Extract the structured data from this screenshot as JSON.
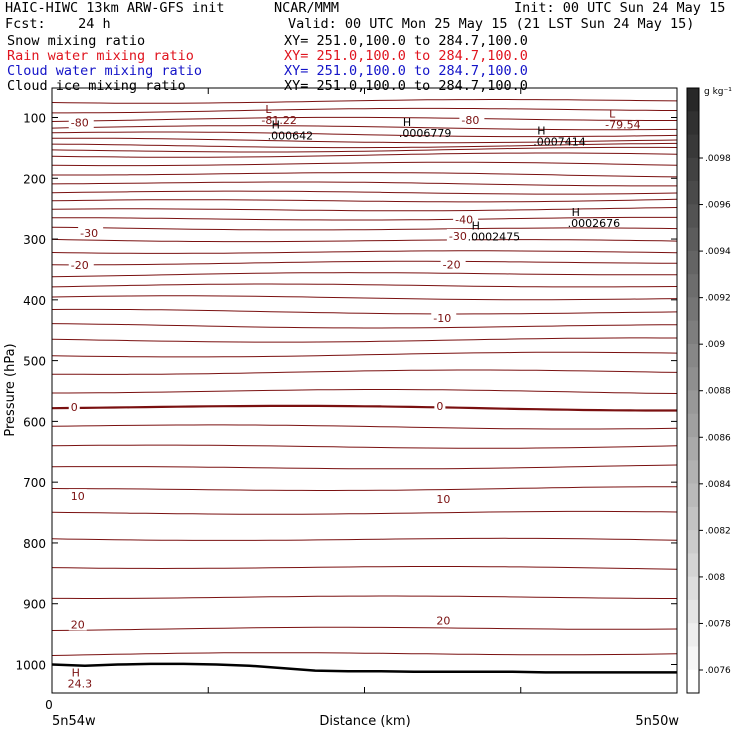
{
  "header": {
    "line1_left": "HAIC-HIWC 13km ARW-GFS init",
    "line1_mid": "NCAR/MMM",
    "line1_right": "Init: 00 UTC Sun 24 May 15",
    "line2_left": "Fcst:    24 h",
    "line2_right": "Valid: 00 UTC Mon 25 May 15 (21 LST Sun 24 May 15)",
    "fields": [
      {
        "label": "Snow mixing ratio",
        "xy": "XY= 251.0,100.0 to 284.7,100.0",
        "color": "#000000"
      },
      {
        "label": "Rain water mixing ratio",
        "xy": "XY= 251.0,100.0 to 284.7,100.0",
        "color": "#e0141e"
      },
      {
        "label": "Cloud water mixing ratio",
        "xy": "XY= 251.0,100.0 to 284.7,100.0",
        "color": "#1414c8"
      },
      {
        "label": "Cloud ice mixing ratio",
        "xy": "XY= 251.0,100.0 to 284.7,100.0",
        "color": "#000000"
      }
    ]
  },
  "chart_data": {
    "type": "line",
    "ylabel": "Pressure (hPa)",
    "xlabel": "Distance (km)",
    "x_start_label": "0",
    "x_left_label": "5n54w",
    "x_right_label": "5n50w",
    "ytick_labels": [
      "100",
      "200",
      "300",
      "400",
      "500",
      "600",
      "700",
      "800",
      "900",
      "1000"
    ],
    "yticks": [
      100,
      200,
      300,
      400,
      500,
      600,
      700,
      800,
      900,
      1000
    ],
    "ylim": [
      1050,
      35
    ],
    "xlim": [
      0,
      1
    ],
    "contour_color": "#7a1010",
    "isotherm_pressures": [
      45,
      72,
      88,
      104,
      118,
      128,
      137,
      145,
      153,
      163,
      178,
      194,
      208,
      222,
      236,
      252,
      268,
      284,
      302,
      320,
      338,
      358,
      378,
      398,
      420,
      442,
      465,
      490,
      520,
      552,
      578,
      608,
      640,
      675,
      712,
      752,
      795,
      840,
      888,
      940,
      983
    ],
    "contour_labels": [
      {
        "text": "-80",
        "x": 0.03,
        "p": 108
      },
      {
        "text": "-80",
        "x": 0.655,
        "p": 104
      },
      {
        "text": "-40",
        "x": 0.645,
        "p": 268
      },
      {
        "text": "-30",
        "x": 0.045,
        "p": 290
      },
      {
        "text": "-30",
        "x": 0.635,
        "p": 295
      },
      {
        "text": "-20",
        "x": 0.03,
        "p": 343
      },
      {
        "text": "-20",
        "x": 0.625,
        "p": 342
      },
      {
        "text": "-10",
        "x": 0.61,
        "p": 430
      },
      {
        "text": "0",
        "x": 0.03,
        "p": 576
      },
      {
        "text": "0",
        "x": 0.615,
        "p": 575
      },
      {
        "text": "10",
        "x": 0.03,
        "p": 723
      },
      {
        "text": "10",
        "x": 0.615,
        "p": 728
      },
      {
        "text": "20",
        "x": 0.03,
        "p": 934
      },
      {
        "text": "20",
        "x": 0.615,
        "p": 928
      }
    ],
    "extrema": [
      {
        "kind": "L",
        "value": "-81.22",
        "x": 0.335,
        "p": 93,
        "color": "#7a1010"
      },
      {
        "kind": "L",
        "value": "-79.54",
        "x": 0.885,
        "p": 100,
        "color": "#7a1010"
      },
      {
        "kind": "H",
        "value": ".000642",
        "x": 0.345,
        "p": 118,
        "color": "#000000"
      },
      {
        "kind": "H",
        "value": ".0006779",
        "x": 0.555,
        "p": 114,
        "color": "#000000"
      },
      {
        "kind": "H",
        "value": ".0007414",
        "x": 0.77,
        "p": 128,
        "color": "#000000"
      },
      {
        "kind": "H",
        "value": ".0002475",
        "x": 0.665,
        "p": 284,
        "color": "#000000"
      },
      {
        "kind": "H",
        "value": ".0002676",
        "x": 0.825,
        "p": 262,
        "color": "#000000"
      },
      {
        "kind": "H",
        "value": "24.3",
        "x": 0.025,
        "p": 1020,
        "color": "#7a1010"
      }
    ],
    "terrain_pressures": [
      1000,
      1002,
      1000,
      999,
      999,
      1000,
      1002,
      1006,
      1010,
      1011,
      1011,
      1012,
      1012,
      1012,
      1012,
      1013,
      1013,
      1013,
      1013,
      1013
    ],
    "colorbar": {
      "unit": "g kg⁻¹",
      "labels": [
        ".0098",
        ".0096",
        ".0094",
        ".0092",
        ".009",
        ".0088",
        ".0086",
        ".0084",
        ".0082",
        ".008",
        ".0078",
        ".0076"
      ]
    }
  }
}
